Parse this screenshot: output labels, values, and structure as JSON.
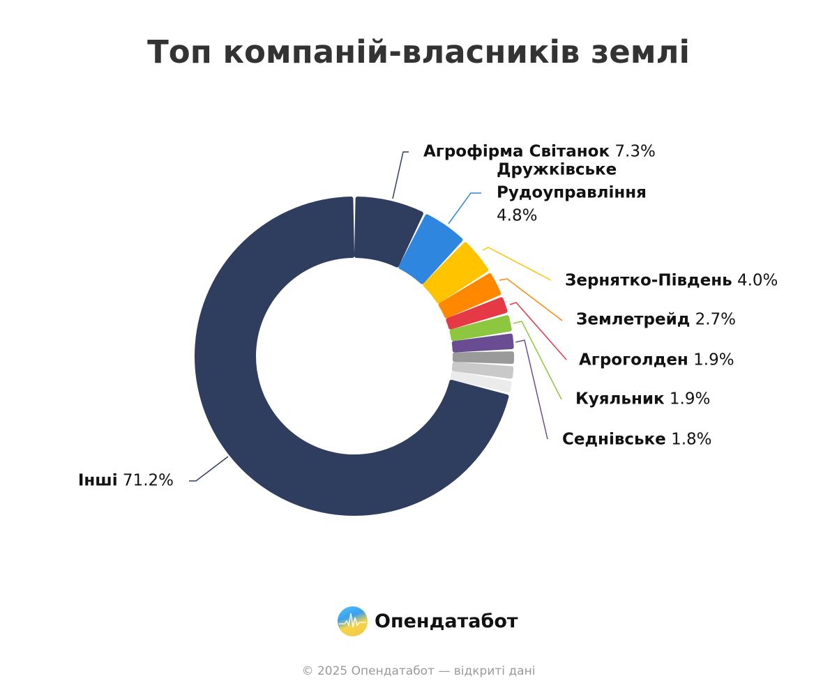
{
  "chart_data": {
    "type": "pie",
    "variant": "donut",
    "title": "Топ компаній-власників землі",
    "unit": "%",
    "slices": [
      {
        "label": "Агрофірма Світанок",
        "value": 7.3,
        "value_label": "7.3%",
        "color": "#2f3e5e"
      },
      {
        "label": "Дружківське Рудоуправління",
        "label_lines": [
          "Дружківське",
          "Рудоуправління"
        ],
        "value": 4.8,
        "value_label": "4.8%",
        "color": "#2e86de"
      },
      {
        "label": "Зернятко-Південь",
        "value": 4.0,
        "value_label": "4.0%",
        "color": "#ffc300"
      },
      {
        "label": "Землетрейд",
        "value": 2.7,
        "value_label": "2.7%",
        "color": "#ff8800"
      },
      {
        "label": "Агроголден",
        "value": 1.9,
        "value_label": "1.9%",
        "color": "#e63946"
      },
      {
        "label": "Куяльник",
        "value": 1.9,
        "value_label": "1.9%",
        "color": "#8dc63f"
      },
      {
        "label": "Седнівське",
        "value": 1.8,
        "value_label": "1.8%",
        "color": "#6a4c93"
      },
      {
        "label": "",
        "value": 1.5,
        "color": "#9a9a9a"
      },
      {
        "label": "",
        "value": 1.5,
        "color": "#c9c9c9"
      },
      {
        "label": "",
        "value": 1.4,
        "color": "#ebebeb"
      },
      {
        "label": "Інші",
        "value": 71.2,
        "value_label": "71.2%",
        "color": "#2f3e5e"
      }
    ]
  },
  "brand": {
    "name": "Опендатабот"
  },
  "footer": "© 2025 Опендатабот — відкриті дані"
}
